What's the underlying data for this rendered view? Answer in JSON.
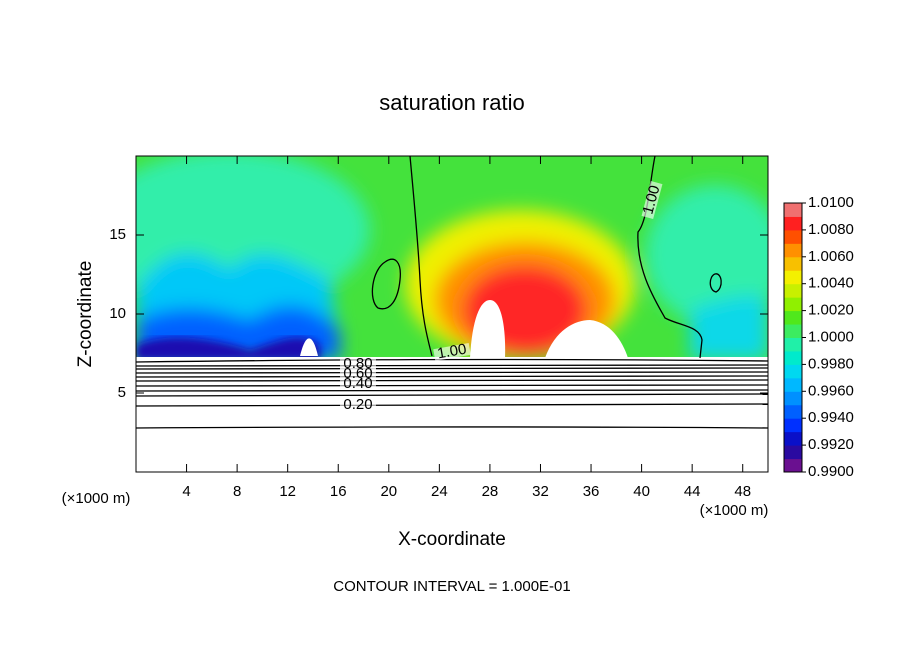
{
  "chart_data": {
    "type": "contour",
    "title": "saturation ratio",
    "xlabel": "X-coordinate",
    "ylabel": "Z-coordinate",
    "x_unit_labels": [
      "(×1000 m)",
      "(×1000 m)"
    ],
    "xlim": [
      0,
      50
    ],
    "xticks": [
      4,
      8,
      12,
      16,
      20,
      24,
      28,
      32,
      36,
      40,
      44,
      48
    ],
    "ylim": [
      0,
      20
    ],
    "yticks": [
      5,
      10,
      15
    ],
    "colorbar": {
      "lim": [
        0.99,
        1.01
      ],
      "ticks": [
        {
          "value": 0.99,
          "label": "0.9900"
        },
        {
          "value": 0.992,
          "label": "0.9920"
        },
        {
          "value": 0.994,
          "label": "0.9940"
        },
        {
          "value": 0.996,
          "label": "0.9960"
        },
        {
          "value": 0.998,
          "label": "0.9980"
        },
        {
          "value": 1.0,
          "label": "1.0000"
        },
        {
          "value": 1.002,
          "label": "1.0020"
        },
        {
          "value": 1.004,
          "label": "1.0040"
        },
        {
          "value": 1.006,
          "label": "1.0060"
        },
        {
          "value": 1.008,
          "label": "1.0080"
        },
        {
          "value": 1.01,
          "label": "1.0100"
        }
      ],
      "colors": [
        "#6a1090",
        "#2a0aa0",
        "#0a10c8",
        "#0030ff",
        "#0060ff",
        "#0090ff",
        "#00b8ff",
        "#00d8f0",
        "#00eacc",
        "#20f0a8",
        "#3cec60",
        "#50e81c",
        "#90f000",
        "#c8f000",
        "#f4f000",
        "#f8c000",
        "#ff9000",
        "#ff5000",
        "#ff2020",
        "#f07070"
      ]
    },
    "contour_labels": [
      {
        "value": 0.8,
        "label": "0.80"
      },
      {
        "value": 0.6,
        "label": "0.60"
      },
      {
        "value": 0.4,
        "label": "0.40"
      },
      {
        "value": 0.2,
        "label": "0.20"
      },
      {
        "value": 1.0,
        "label": "1.00"
      },
      {
        "value": 1.0,
        "label": "1.00"
      }
    ],
    "note": "CONTOUR INTERVAL = 1.000E-01"
  }
}
